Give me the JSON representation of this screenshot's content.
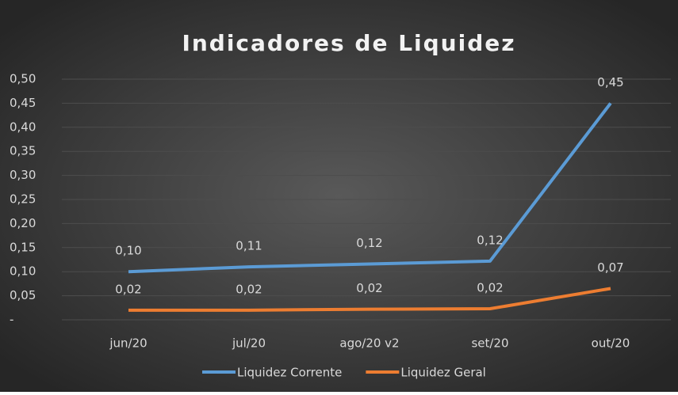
{
  "chart_data": {
    "type": "line",
    "title": "Indicadores de Liquidez",
    "categories": [
      "jun/20",
      "jul/20",
      "ago/20 v2",
      "set/20",
      "out/20"
    ],
    "series": [
      {
        "name": "Liquidez Corrente",
        "color": "#5b9bd5",
        "values": [
          0.1,
          0.11,
          0.116,
          0.122,
          0.45
        ],
        "value_labels": [
          "0,10",
          "0,11",
          "0,12",
          "0,12",
          "0,45"
        ]
      },
      {
        "name": "Liquidez Geral",
        "color": "#ed7d31",
        "values": [
          0.02,
          0.02,
          0.022,
          0.023,
          0.065
        ],
        "value_labels": [
          "0,02",
          "0,02",
          "0,02",
          "0,02",
          "0,07"
        ]
      }
    ],
    "ylim": [
      0,
      0.5
    ],
    "yticks": [
      {
        "value": 0,
        "label": "-"
      },
      {
        "value": 0.05,
        "label": "0,05"
      },
      {
        "value": 0.1,
        "label": "0,10"
      },
      {
        "value": 0.15,
        "label": "0,15"
      },
      {
        "value": 0.2,
        "label": "0,20"
      },
      {
        "value": 0.25,
        "label": "0,25"
      },
      {
        "value": 0.3,
        "label": "0,30"
      },
      {
        "value": 0.35,
        "label": "0,35"
      },
      {
        "value": 0.4,
        "label": "0,40"
      },
      {
        "value": 0.45,
        "label": "0,45"
      },
      {
        "value": 0.5,
        "label": "0,50"
      }
    ],
    "grid": true,
    "legend": "bottom"
  }
}
